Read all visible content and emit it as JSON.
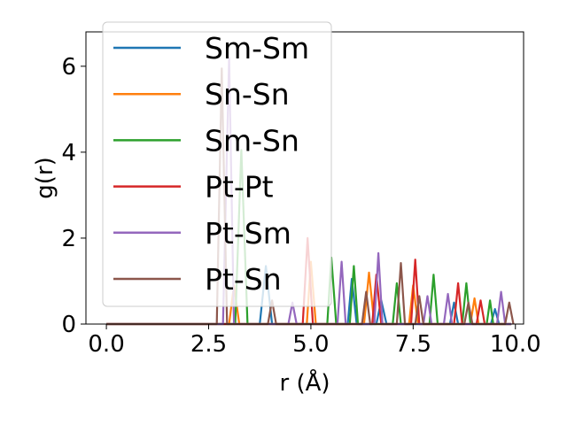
{
  "chart_data": {
    "type": "line",
    "xlabel": "r (Å)",
    "ylabel": "g(r)",
    "xlim": [
      -0.5,
      10.2
    ],
    "ylim": [
      0,
      6.8
    ],
    "xticks": [
      0.0,
      2.5,
      5.0,
      7.5,
      10.0
    ],
    "xtick_labels": [
      "0.0",
      "2.5",
      "5.0",
      "7.5",
      "10.0"
    ],
    "yticks": [
      0,
      2,
      4,
      6
    ],
    "ytick_labels": [
      "0",
      "2",
      "4",
      "6"
    ],
    "legend_placement": "upper-left",
    "grid": false,
    "series": [
      {
        "name": "Sm-Sm",
        "color": "#1f77b4",
        "points": [
          [
            0,
            0
          ],
          [
            3.75,
            0
          ],
          [
            3.9,
            1.35
          ],
          [
            4.05,
            0
          ],
          [
            5.9,
            0
          ],
          [
            6.0,
            1.05
          ],
          [
            6.12,
            0
          ],
          [
            6.6,
            0
          ],
          [
            6.72,
            0.55
          ],
          [
            6.85,
            0
          ],
          [
            8.4,
            0
          ],
          [
            8.5,
            0.5
          ],
          [
            8.6,
            0
          ],
          [
            9.4,
            0
          ],
          [
            9.5,
            0.35
          ],
          [
            9.6,
            0
          ],
          [
            9.9,
            0
          ]
        ]
      },
      {
        "name": "Sn-Sn",
        "color": "#ff7f0e",
        "points": [
          [
            0,
            0
          ],
          [
            3.0,
            0
          ],
          [
            3.12,
            0.9
          ],
          [
            3.25,
            0
          ],
          [
            4.9,
            0
          ],
          [
            5.0,
            1.45
          ],
          [
            5.12,
            0
          ],
          [
            6.3,
            0
          ],
          [
            6.42,
            1.2
          ],
          [
            6.55,
            0
          ],
          [
            7.4,
            0
          ],
          [
            7.5,
            0.9
          ],
          [
            7.62,
            0
          ],
          [
            8.9,
            0
          ],
          [
            9.0,
            0.6
          ],
          [
            9.1,
            0
          ],
          [
            9.9,
            0
          ]
        ]
      },
      {
        "name": "Sm-Sn",
        "color": "#2ca02c",
        "points": [
          [
            0,
            0
          ],
          [
            3.15,
            0
          ],
          [
            3.3,
            4.05
          ],
          [
            3.45,
            0
          ],
          [
            5.4,
            0
          ],
          [
            5.5,
            1.55
          ],
          [
            5.62,
            0
          ],
          [
            5.95,
            0
          ],
          [
            6.05,
            1.35
          ],
          [
            6.15,
            0
          ],
          [
            7.0,
            0
          ],
          [
            7.1,
            0.95
          ],
          [
            7.2,
            0
          ],
          [
            7.9,
            0
          ],
          [
            8.0,
            1.15
          ],
          [
            8.1,
            0
          ],
          [
            8.7,
            0
          ],
          [
            8.8,
            0.95
          ],
          [
            8.9,
            0
          ],
          [
            9.3,
            0
          ],
          [
            9.38,
            0.55
          ],
          [
            9.46,
            0
          ],
          [
            9.9,
            0
          ]
        ]
      },
      {
        "name": "Pt-Pt",
        "color": "#d62728",
        "points": [
          [
            0,
            0
          ],
          [
            4.8,
            0
          ],
          [
            4.92,
            2.0
          ],
          [
            5.05,
            0
          ],
          [
            6.5,
            0
          ],
          [
            6.6,
            1.15
          ],
          [
            6.72,
            0
          ],
          [
            7.45,
            0
          ],
          [
            7.55,
            1.5
          ],
          [
            7.65,
            0
          ],
          [
            8.5,
            0
          ],
          [
            8.6,
            0.95
          ],
          [
            8.7,
            0
          ],
          [
            9.05,
            0
          ],
          [
            9.15,
            0.55
          ],
          [
            9.25,
            0
          ],
          [
            9.9,
            0
          ]
        ]
      },
      {
        "name": "Pt-Sm",
        "color": "#9467bd",
        "points": [
          [
            0,
            0
          ],
          [
            2.85,
            0
          ],
          [
            3.0,
            6.2
          ],
          [
            3.12,
            0
          ],
          [
            4.45,
            0
          ],
          [
            4.55,
            0.5
          ],
          [
            4.65,
            0
          ],
          [
            5.65,
            0
          ],
          [
            5.75,
            1.45
          ],
          [
            5.85,
            0
          ],
          [
            6.55,
            0
          ],
          [
            6.65,
            1.65
          ],
          [
            6.75,
            0
          ],
          [
            7.75,
            0
          ],
          [
            7.85,
            0.65
          ],
          [
            7.95,
            0
          ],
          [
            8.25,
            0
          ],
          [
            8.35,
            0.7
          ],
          [
            8.45,
            0
          ],
          [
            9.55,
            0
          ],
          [
            9.65,
            0.75
          ],
          [
            9.75,
            0
          ],
          [
            9.9,
            0
          ]
        ]
      },
      {
        "name": "Pt-Sn",
        "color": "#8c564b",
        "points": [
          [
            0,
            0
          ],
          [
            2.7,
            0
          ],
          [
            2.82,
            5.95
          ],
          [
            2.95,
            0
          ],
          [
            3.95,
            0
          ],
          [
            4.05,
            0.55
          ],
          [
            4.15,
            0
          ],
          [
            6.25,
            0
          ],
          [
            6.35,
            0.75
          ],
          [
            6.45,
            0
          ],
          [
            7.1,
            0
          ],
          [
            7.2,
            1.42
          ],
          [
            7.3,
            0
          ],
          [
            7.55,
            0
          ],
          [
            7.65,
            0.65
          ],
          [
            7.75,
            0
          ],
          [
            8.75,
            0
          ],
          [
            8.85,
            0.5
          ],
          [
            8.95,
            0
          ],
          [
            9.75,
            0
          ],
          [
            9.85,
            0.5
          ],
          [
            9.95,
            0
          ]
        ]
      }
    ]
  }
}
